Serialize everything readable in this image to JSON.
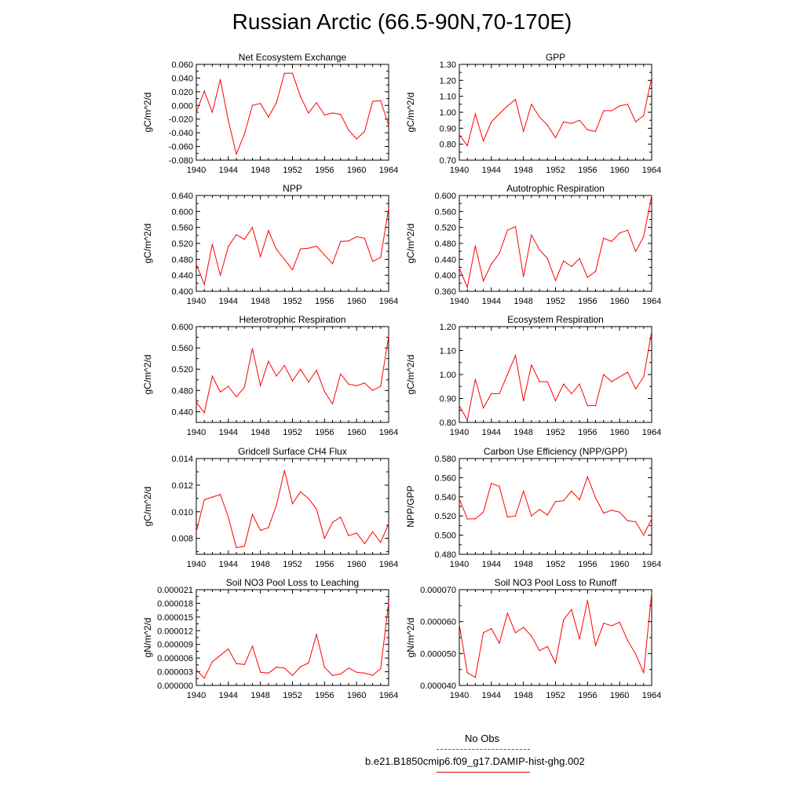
{
  "page": {
    "title": "Russian Arctic (66.5-90N,70-170E)"
  },
  "legend": {
    "obs_label": "No Obs",
    "model_label": "b.e21.B1850cmip6.f09_g17.DAMIP-hist-ghg.002",
    "model_color": "#ff0000",
    "obs_color": "#4f4fd0"
  },
  "chart_data": [
    {
      "type": "line",
      "title": "Net Ecosystem Exchange",
      "ylabel": "gC/m^2/d",
      "xlim": [
        1940,
        1964
      ],
      "ylim": [
        -0.08,
        0.06
      ],
      "x_ticks": [
        1940,
        1944,
        1948,
        1952,
        1956,
        1960,
        1964
      ],
      "y_ticks": [
        "-0.080",
        "-0.060",
        "-0.040",
        "-0.020",
        "0.000",
        "0.020",
        "0.040",
        "0.060"
      ],
      "y_tick_values": [
        -0.08,
        -0.06,
        -0.04,
        -0.02,
        0.0,
        0.02,
        0.04,
        0.06
      ],
      "x": [
        1940,
        1941,
        1942,
        1943,
        1944,
        1945,
        1946,
        1947,
        1948,
        1949,
        1950,
        1951,
        1952,
        1953,
        1954,
        1955,
        1956,
        1957,
        1958,
        1959,
        1960,
        1961,
        1962,
        1963,
        1964
      ],
      "values": [
        -0.01,
        0.021,
        -0.01,
        0.038,
        -0.022,
        -0.071,
        -0.042,
        0.0,
        0.003,
        -0.017,
        0.004,
        0.047,
        0.047,
        0.013,
        -0.011,
        0.004,
        -0.014,
        -0.011,
        -0.013,
        -0.036,
        -0.049,
        -0.038,
        0.006,
        0.007,
        -0.029
      ]
    },
    {
      "type": "line",
      "title": "GPP",
      "ylabel": "gC/m^2/d",
      "xlim": [
        1940,
        1964
      ],
      "ylim": [
        0.7,
        1.3
      ],
      "x_ticks": [
        1940,
        1944,
        1948,
        1952,
        1956,
        1960,
        1964
      ],
      "y_ticks": [
        "0.70",
        "0.80",
        "0.90",
        "1.00",
        "1.10",
        "1.20",
        "1.30"
      ],
      "y_tick_values": [
        0.7,
        0.8,
        0.9,
        1.0,
        1.1,
        1.2,
        1.3
      ],
      "x": [
        1940,
        1941,
        1942,
        1943,
        1944,
        1945,
        1946,
        1947,
        1948,
        1949,
        1950,
        1951,
        1952,
        1953,
        1954,
        1955,
        1956,
        1957,
        1958,
        1959,
        1960,
        1961,
        1962,
        1963,
        1964
      ],
      "values": [
        0.86,
        0.79,
        0.99,
        0.82,
        0.94,
        0.99,
        1.04,
        1.08,
        0.88,
        1.05,
        0.97,
        0.92,
        0.84,
        0.94,
        0.93,
        0.95,
        0.89,
        0.88,
        1.01,
        1.01,
        1.04,
        1.05,
        0.94,
        0.98,
        1.22
      ]
    },
    {
      "type": "line",
      "title": "NPP",
      "ylabel": "gC/m^2/d",
      "xlim": [
        1940,
        1964
      ],
      "ylim": [
        0.4,
        0.64
      ],
      "x_ticks": [
        1940,
        1944,
        1948,
        1952,
        1956,
        1960,
        1964
      ],
      "y_ticks": [
        "0.400",
        "0.440",
        "0.480",
        "0.520",
        "0.560",
        "0.600",
        "0.640"
      ],
      "y_tick_values": [
        0.4,
        0.44,
        0.48,
        0.52,
        0.56,
        0.6,
        0.64
      ],
      "x": [
        1940,
        1941,
        1942,
        1943,
        1944,
        1945,
        1946,
        1947,
        1948,
        1949,
        1950,
        1951,
        1952,
        1953,
        1954,
        1955,
        1956,
        1957,
        1958,
        1959,
        1960,
        1961,
        1962,
        1963,
        1964
      ],
      "values": [
        0.468,
        0.417,
        0.518,
        0.44,
        0.512,
        0.542,
        0.53,
        0.56,
        0.487,
        0.552,
        0.505,
        0.48,
        0.454,
        0.506,
        0.508,
        0.513,
        0.491,
        0.469,
        0.525,
        0.526,
        0.537,
        0.533,
        0.475,
        0.485,
        0.608
      ]
    },
    {
      "type": "line",
      "title": "Autotrophic Respiration",
      "ylabel": "gC/m^2/d",
      "xlim": [
        1940,
        1964
      ],
      "ylim": [
        0.36,
        0.6
      ],
      "x_ticks": [
        1940,
        1944,
        1948,
        1952,
        1956,
        1960,
        1964
      ],
      "y_ticks": [
        "0.360",
        "0.400",
        "0.440",
        "0.480",
        "0.520",
        "0.560",
        "0.600"
      ],
      "y_tick_values": [
        0.36,
        0.4,
        0.44,
        0.48,
        0.52,
        0.56,
        0.6
      ],
      "x": [
        1940,
        1941,
        1942,
        1943,
        1944,
        1945,
        1946,
        1947,
        1948,
        1949,
        1950,
        1951,
        1952,
        1953,
        1954,
        1955,
        1956,
        1957,
        1958,
        1959,
        1960,
        1961,
        1962,
        1963,
        1964
      ],
      "values": [
        0.418,
        0.37,
        0.474,
        0.386,
        0.428,
        0.455,
        0.513,
        0.522,
        0.397,
        0.501,
        0.464,
        0.442,
        0.387,
        0.436,
        0.422,
        0.442,
        0.395,
        0.41,
        0.493,
        0.485,
        0.506,
        0.513,
        0.46,
        0.497,
        0.6
      ]
    },
    {
      "type": "line",
      "title": "Heterotrophic Respiration",
      "ylabel": "gC/m^2/d",
      "xlim": [
        1940,
        1964
      ],
      "ylim": [
        0.42,
        0.6
      ],
      "x_ticks": [
        1940,
        1944,
        1948,
        1952,
        1956,
        1960,
        1964
      ],
      "y_ticks": [
        "0.440",
        "0.480",
        "0.520",
        "0.560",
        "0.600"
      ],
      "y_tick_values": [
        0.44,
        0.48,
        0.52,
        0.56,
        0.6
      ],
      "x": [
        1940,
        1941,
        1942,
        1943,
        1944,
        1945,
        1946,
        1947,
        1948,
        1949,
        1950,
        1951,
        1952,
        1953,
        1954,
        1955,
        1956,
        1957,
        1958,
        1959,
        1960,
        1961,
        1962,
        1963,
        1964
      ],
      "values": [
        0.458,
        0.438,
        0.507,
        0.477,
        0.488,
        0.468,
        0.486,
        0.559,
        0.489,
        0.535,
        0.507,
        0.527,
        0.498,
        0.52,
        0.496,
        0.518,
        0.478,
        0.455,
        0.511,
        0.492,
        0.489,
        0.494,
        0.48,
        0.488,
        0.582
      ]
    },
    {
      "type": "line",
      "title": "Ecosystem Respiration",
      "ylabel": "gC/m^2/d",
      "xlim": [
        1940,
        1964
      ],
      "ylim": [
        0.8,
        1.2
      ],
      "x_ticks": [
        1940,
        1944,
        1948,
        1952,
        1956,
        1960,
        1964
      ],
      "y_ticks": [
        "0.80",
        "0.90",
        "1.00",
        "1.10",
        "1.20"
      ],
      "y_tick_values": [
        0.8,
        0.9,
        1.0,
        1.1,
        1.2
      ],
      "x": [
        1940,
        1941,
        1942,
        1943,
        1944,
        1945,
        1946,
        1947,
        1948,
        1949,
        1950,
        1951,
        1952,
        1953,
        1954,
        1955,
        1956,
        1957,
        1958,
        1959,
        1960,
        1961,
        1962,
        1963,
        1964
      ],
      "values": [
        0.87,
        0.81,
        0.98,
        0.86,
        0.92,
        0.92,
        1.0,
        1.08,
        0.89,
        1.04,
        0.97,
        0.97,
        0.89,
        0.96,
        0.92,
        0.96,
        0.87,
        0.87,
        1.0,
        0.97,
        0.99,
        1.01,
        0.94,
        0.99,
        1.18
      ]
    },
    {
      "type": "line",
      "title": "Gridcell Surface CH4 Flux",
      "ylabel": "gC/m^2/d",
      "xlim": [
        1940,
        1964
      ],
      "ylim": [
        0.0068,
        0.014
      ],
      "x_ticks": [
        1940,
        1944,
        1948,
        1952,
        1956,
        1960,
        1964
      ],
      "y_ticks": [
        "0.008",
        "0.010",
        "0.012",
        "0.014"
      ],
      "y_tick_values": [
        0.008,
        0.01,
        0.012,
        0.014
      ],
      "x": [
        1940,
        1941,
        1942,
        1943,
        1944,
        1945,
        1946,
        1947,
        1948,
        1949,
        1950,
        1951,
        1952,
        1953,
        1954,
        1955,
        1956,
        1957,
        1958,
        1959,
        1960,
        1961,
        1962,
        1963,
        1964
      ],
      "values": [
        0.0085,
        0.0109,
        0.0111,
        0.0113,
        0.0096,
        0.0073,
        0.0074,
        0.0098,
        0.0086,
        0.0088,
        0.0105,
        0.0131,
        0.0106,
        0.0115,
        0.011,
        0.0102,
        0.008,
        0.0092,
        0.0096,
        0.0082,
        0.0084,
        0.0076,
        0.0085,
        0.0077,
        0.0091
      ]
    },
    {
      "type": "line",
      "title": "Carbon Use Efficiency (NPP/GPP)",
      "ylabel": "NPP/GPP",
      "xlim": [
        1940,
        1964
      ],
      "ylim": [
        0.48,
        0.58
      ],
      "x_ticks": [
        1940,
        1944,
        1948,
        1952,
        1956,
        1960,
        1964
      ],
      "y_ticks": [
        "0.480",
        "0.500",
        "0.520",
        "0.540",
        "0.560",
        "0.580"
      ],
      "y_tick_values": [
        0.48,
        0.5,
        0.52,
        0.54,
        0.56,
        0.58
      ],
      "x": [
        1940,
        1941,
        1942,
        1943,
        1944,
        1945,
        1946,
        1947,
        1948,
        1949,
        1950,
        1951,
        1952,
        1953,
        1954,
        1955,
        1956,
        1957,
        1958,
        1959,
        1960,
        1961,
        1962,
        1963,
        1964
      ],
      "values": [
        0.538,
        0.517,
        0.517,
        0.524,
        0.554,
        0.551,
        0.519,
        0.52,
        0.546,
        0.52,
        0.527,
        0.521,
        0.535,
        0.536,
        0.546,
        0.537,
        0.561,
        0.539,
        0.523,
        0.526,
        0.524,
        0.515,
        0.514,
        0.5,
        0.517
      ]
    },
    {
      "type": "line",
      "title": "Soil NO3 Pool Loss to Leaching",
      "ylabel": "gN/m^2/d",
      "xlim": [
        1940,
        1964
      ],
      "ylim": [
        0.0,
        2.1e-05
      ],
      "x_ticks": [
        1940,
        1944,
        1948,
        1952,
        1956,
        1960,
        1964
      ],
      "y_ticks": [
        "0.000000",
        "0.000003",
        "0.000006",
        "0.000009",
        "0.000012",
        "0.000015",
        "0.000018",
        "0.000021"
      ],
      "y_tick_values": [
        0.0,
        3e-06,
        6e-06,
        9e-06,
        1.2e-05,
        1.5e-05,
        1.8e-05,
        2.1e-05
      ],
      "x": [
        1940,
        1941,
        1942,
        1943,
        1944,
        1945,
        1946,
        1947,
        1948,
        1949,
        1950,
        1951,
        1952,
        1953,
        1954,
        1955,
        1956,
        1957,
        1958,
        1959,
        1960,
        1961,
        1962,
        1963,
        1964
      ],
      "values": [
        3.4e-06,
        1.6e-06,
        5.2e-06,
        6.6e-06,
        8e-06,
        4.8e-06,
        4.6e-06,
        8.6e-06,
        2.9e-06,
        2.7e-06,
        4e-06,
        3.8e-06,
        2.2e-06,
        4.1e-06,
        4.9e-06,
        1.12e-05,
        4e-06,
        2.2e-06,
        2.5e-06,
        3.8e-06,
        2.9e-06,
        2.7e-06,
        2.2e-06,
        3.7e-06,
        1.82e-05
      ]
    },
    {
      "type": "line",
      "title": "Soil NO3 Pool Loss to Runoff",
      "ylabel": "gN/m^2/d",
      "xlim": [
        1940,
        1964
      ],
      "ylim": [
        4e-05,
        7e-05
      ],
      "x_ticks": [
        1940,
        1944,
        1948,
        1952,
        1956,
        1960,
        1964
      ],
      "y_ticks": [
        "0.000040",
        "0.000050",
        "0.000060",
        "0.000070"
      ],
      "y_tick_values": [
        4e-05,
        5e-05,
        6e-05,
        7e-05
      ],
      "x": [
        1940,
        1941,
        1942,
        1943,
        1944,
        1945,
        1946,
        1947,
        1948,
        1949,
        1950,
        1951,
        1952,
        1953,
        1954,
        1955,
        1956,
        1957,
        1958,
        1959,
        1960,
        1961,
        1962,
        1963,
        1964
      ],
      "values": [
        5.9e-05,
        4.4e-05,
        4.25e-05,
        5.65e-05,
        5.78e-05,
        5.32e-05,
        6.26e-05,
        5.65e-05,
        5.82e-05,
        5.55e-05,
        5.09e-05,
        5.22e-05,
        4.7e-05,
        6.05e-05,
        6.38e-05,
        5.45e-05,
        6.66e-05,
        5.25e-05,
        5.95e-05,
        5.87e-05,
        5.98e-05,
        5.41e-05,
        4.98e-05,
        4.4e-05,
        6.9e-05
      ]
    }
  ]
}
